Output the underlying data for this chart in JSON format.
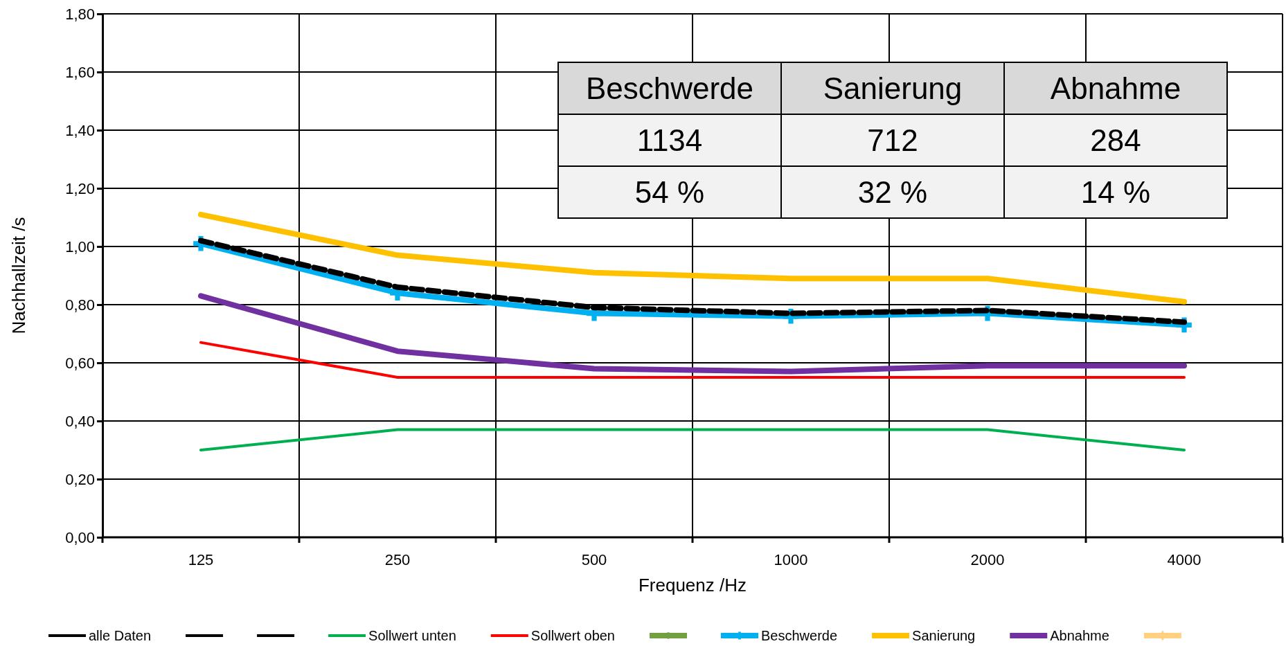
{
  "chart_data": {
    "type": "line",
    "xlabel": "Frequenz /Hz",
    "ylabel": "Nachhallzeit /s",
    "categories": [
      "125",
      "250",
      "500",
      "1000",
      "2000",
      "4000"
    ],
    "ylim": [
      0,
      1.8
    ],
    "yticks": [
      {
        "value": 0,
        "label": "0,00"
      },
      {
        "value": 0.2,
        "label": "0,20"
      },
      {
        "value": 0.4,
        "label": "0,40"
      },
      {
        "value": 0.6,
        "label": "0,60"
      },
      {
        "value": 0.8,
        "label": "0,80"
      },
      {
        "value": 1.0,
        "label": "1,00"
      },
      {
        "value": 1.2,
        "label": "1,20"
      },
      {
        "value": 1.4,
        "label": "1,40"
      },
      {
        "value": 1.6,
        "label": "1,60"
      },
      {
        "value": 1.8,
        "label": "1,80"
      }
    ],
    "grid": true,
    "legend": "bottom",
    "marker": "none",
    "line_style": "solid",
    "series": [
      {
        "name": "alle Daten",
        "color": "#000000",
        "line_style": "dashed",
        "values": [
          1.02,
          0.86,
          0.79,
          0.77,
          0.78,
          0.74
        ]
      },
      {
        "color": "#000000",
        "line_style": "dashed",
        "values": [
          null,
          null,
          null,
          null,
          null,
          null
        ]
      },
      {
        "color": "#000000",
        "line_style": "dashed",
        "values": [
          null,
          null,
          null,
          null,
          null,
          null
        ]
      },
      {
        "name": "Sollwert unten",
        "color": "#00b050",
        "values": [
          0.3,
          0.37,
          0.37,
          0.37,
          0.37,
          0.3
        ]
      },
      {
        "name": "Sollwert oben",
        "color": "#ff0000",
        "values": [
          0.67,
          0.55,
          0.55,
          0.55,
          0.55,
          0.55
        ]
      },
      {
        "color": "#70a040",
        "marker": "circle",
        "values": [
          null,
          null,
          null,
          null,
          null,
          null
        ]
      },
      {
        "name": "Beschwerde",
        "color": "#00b0f0",
        "marker": "cross",
        "values": [
          1.01,
          0.84,
          0.77,
          0.76,
          0.77,
          0.73
        ]
      },
      {
        "name": "Sanierung",
        "color": "#ffc000",
        "values": [
          1.11,
          0.97,
          0.91,
          0.89,
          0.89,
          0.81
        ]
      },
      {
        "name": "Abnahme",
        "color": "#7030a0",
        "values": [
          0.83,
          0.64,
          0.58,
          0.57,
          0.59,
          0.59
        ]
      },
      {
        "color": "#ffd080",
        "marker": "diamond",
        "values": [
          null,
          null,
          null,
          null,
          null,
          null
        ]
      }
    ],
    "annotations": [
      "Beschwerde",
      "Sanierung",
      "Abnahme",
      "1134",
      "712",
      "284",
      "54 %",
      "32 %",
      "14 %"
    ]
  }
}
